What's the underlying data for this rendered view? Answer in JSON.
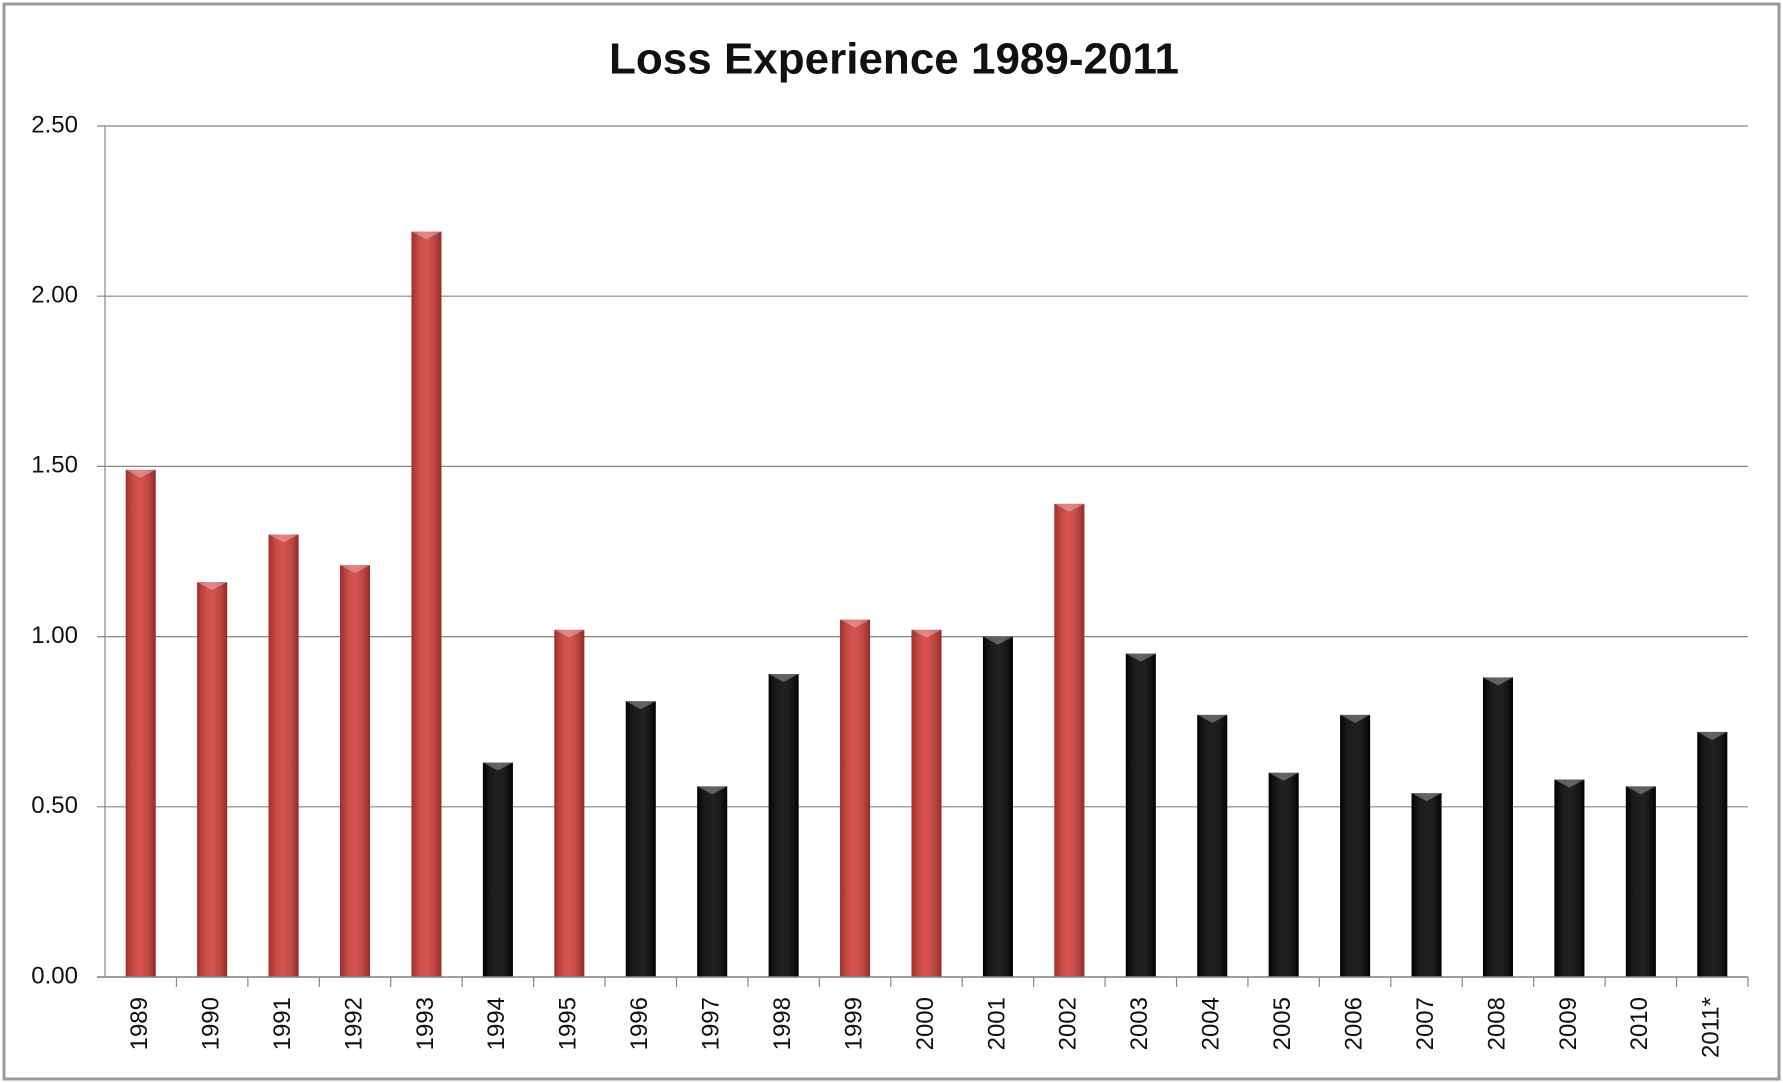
{
  "chart_data": {
    "type": "bar",
    "title": "Loss Experience 1989-2011",
    "categories": [
      "1989",
      "1990",
      "1991",
      "1992",
      "1993",
      "1994",
      "1995",
      "1996",
      "1997",
      "1998",
      "1999",
      "2000",
      "2001",
      "2002",
      "2003",
      "2004",
      "2005",
      "2006",
      "2007",
      "2008",
      "2009",
      "2010",
      "2011*"
    ],
    "values": [
      1.49,
      1.16,
      1.3,
      1.21,
      2.19,
      0.63,
      1.02,
      0.81,
      0.56,
      0.89,
      1.05,
      1.02,
      1.0,
      1.39,
      0.95,
      0.77,
      0.6,
      0.77,
      0.54,
      0.88,
      0.58,
      0.56,
      0.72
    ],
    "colors": [
      "#d13b36",
      "#d13b36",
      "#d13b36",
      "#d13b36",
      "#d13b36",
      "#000000",
      "#d13b36",
      "#000000",
      "#000000",
      "#000000",
      "#d13b36",
      "#d13b36",
      "#000000",
      "#d13b36",
      "#000000",
      "#000000",
      "#000000",
      "#000000",
      "#000000",
      "#000000",
      "#000000",
      "#000000",
      "#000000"
    ],
    "ylim": [
      0,
      2.5
    ],
    "yticks": [
      {
        "value": 0,
        "label": "0.00"
      },
      {
        "value": 0.5,
        "label": "0.50"
      },
      {
        "value": 1,
        "label": "1.00"
      },
      {
        "value": 1.5,
        "label": "1.50"
      },
      {
        "value": 2,
        "label": "2.00"
      },
      {
        "value": 2.5,
        "label": "2.50"
      }
    ],
    "grid": true
  }
}
